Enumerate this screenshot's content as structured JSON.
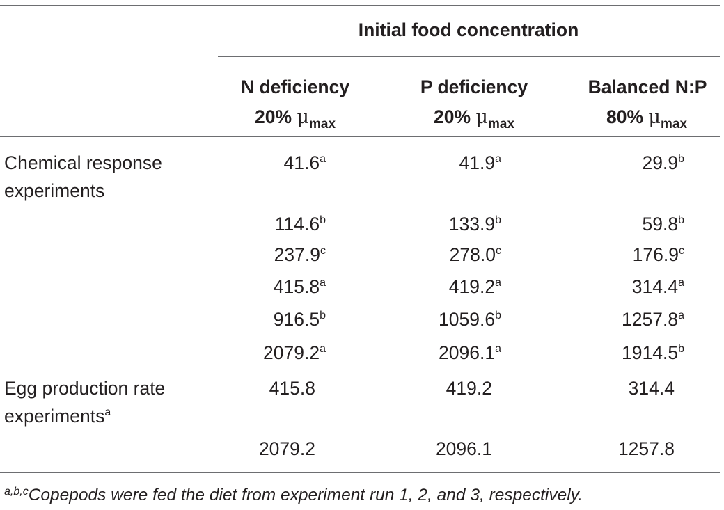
{
  "header": {
    "group_title": "Initial food concentration",
    "columns": [
      {
        "line1": "N deficiency",
        "pct": "20%",
        "mu": "μ",
        "sub": "max"
      },
      {
        "line1": "P deficiency",
        "pct": "20%",
        "mu": "μ",
        "sub": "max"
      },
      {
        "line1": "Balanced N:P",
        "pct": "80%",
        "mu": "μ",
        "sub": "max"
      }
    ]
  },
  "rows": [
    {
      "label1": "Chemical response",
      "label2": "experiments",
      "label_sup": "",
      "cells": [
        {
          "v": "41.6",
          "s": "a"
        },
        {
          "v": "41.9",
          "s": "a"
        },
        {
          "v": "29.9",
          "s": "b"
        }
      ]
    },
    {
      "cells": [
        {
          "v": "114.6",
          "s": "b"
        },
        {
          "v": "133.9",
          "s": "b"
        },
        {
          "v": "59.8",
          "s": "b"
        }
      ]
    },
    {
      "cells": [
        {
          "v": "237.9",
          "s": "c"
        },
        {
          "v": "278.0",
          "s": "c"
        },
        {
          "v": "176.9",
          "s": "c"
        }
      ]
    },
    {
      "cells": [
        {
          "v": "415.8",
          "s": "a"
        },
        {
          "v": "419.2",
          "s": "a"
        },
        {
          "v": "314.4",
          "s": "a"
        }
      ]
    },
    {
      "cells": [
        {
          "v": "916.5",
          "s": "b"
        },
        {
          "v": "1059.6",
          "s": "b"
        },
        {
          "v": "1257.8",
          "s": "a"
        }
      ]
    },
    {
      "cells": [
        {
          "v": "2079.2",
          "s": "a"
        },
        {
          "v": "2096.1",
          "s": "a"
        },
        {
          "v": "1914.5",
          "s": "b"
        }
      ]
    },
    {
      "label1": "Egg production rate",
      "label2": "experiments",
      "label_sup": "a",
      "cells": [
        {
          "v": "415.8",
          "s": ""
        },
        {
          "v": "419.2",
          "s": ""
        },
        {
          "v": "314.4",
          "s": ""
        }
      ]
    },
    {
      "cells": [
        {
          "v": "2079.2",
          "s": ""
        },
        {
          "v": "2096.1",
          "s": ""
        },
        {
          "v": "1257.8",
          "s": ""
        }
      ]
    }
  ],
  "footnote": {
    "sup": "a,b,c",
    "text": "Copepods were fed the diet from experiment run 1, 2, and 3, respectively."
  }
}
